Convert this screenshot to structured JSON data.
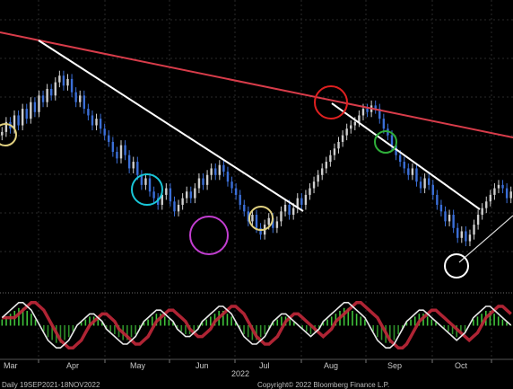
{
  "chart_data": {
    "type": "candlestick",
    "x_axis": {
      "months": [
        "Mar",
        "Apr",
        "May",
        "Jun",
        "Jul",
        "Aug",
        "Sep",
        "Oct"
      ],
      "year": "2022"
    },
    "footer": {
      "left": "Daily 19SEP2021-18NOV2022",
      "right": "Copyright© 2022 Bloomberg Finance L.P."
    },
    "grid": true,
    "background": "#000000",
    "price_panel": {
      "description_series": "daily price bars (dark blue bars = down days, white/grey bars = up days)",
      "close": [
        97,
        100,
        98,
        102,
        99,
        104,
        101,
        106,
        103,
        108,
        106,
        110,
        108,
        112,
        114,
        111,
        113,
        109,
        106,
        108,
        104,
        102,
        99,
        101,
        98,
        96,
        94,
        91,
        89,
        93,
        90,
        86,
        88,
        84,
        81,
        83,
        79,
        77,
        75,
        78,
        80,
        76,
        73,
        75,
        77,
        79,
        77,
        80,
        83,
        81,
        84,
        86,
        84,
        87,
        85,
        82,
        80,
        78,
        75,
        73,
        70,
        72,
        68,
        66,
        69,
        71,
        68,
        70,
        73,
        75,
        72,
        74,
        77,
        75,
        78,
        80,
        82,
        84,
        86,
        88,
        90,
        92,
        94,
        96,
        98,
        99,
        100,
        102,
        104,
        103,
        105,
        104,
        101,
        98,
        96,
        93,
        90,
        88,
        86,
        84,
        86,
        82,
        80,
        83,
        81,
        78,
        75,
        73,
        70,
        72,
        68,
        65,
        67,
        64,
        66,
        69,
        72,
        74,
        76,
        78,
        80,
        81,
        80,
        77,
        79
      ],
      "up_color": "#cfcfcf",
      "down_color": "#3b6fd8"
    },
    "trendlines": [
      {
        "name": "long-term-resistance",
        "color": "#d83c4a"
      },
      {
        "name": "downtrend-1",
        "color": "#ffffff"
      },
      {
        "name": "downtrend-2",
        "color": "#ffffff"
      },
      {
        "name": "uptrend-support",
        "color": "#d8d8d8"
      }
    ],
    "annotations": [
      {
        "shape": "circle",
        "color": "#e0d080"
      },
      {
        "shape": "circle",
        "color": "#19c7d8"
      },
      {
        "shape": "circle",
        "color": "#c23ed0"
      },
      {
        "shape": "circle",
        "color": "#e0d080"
      },
      {
        "shape": "circle",
        "color": "#e02020"
      },
      {
        "shape": "circle",
        "color": "#2fae3a"
      },
      {
        "shape": "circle",
        "color": "#ffffff"
      }
    ],
    "indicator_panel": {
      "histogram": [
        2,
        3,
        4,
        5,
        6,
        6,
        5,
        4,
        2,
        0,
        -2,
        -4,
        -5,
        -6,
        -6,
        -5,
        -4,
        -2,
        0,
        1,
        2,
        3,
        3,
        2,
        1,
        -1,
        -2,
        -3,
        -4,
        -5,
        -5,
        -4,
        -3,
        -1,
        1,
        2,
        3,
        4,
        4,
        3,
        2,
        1,
        -1,
        -2,
        -3,
        -3,
        -2,
        -1,
        1,
        2,
        3,
        4,
        5,
        5,
        4,
        3,
        1,
        -1,
        -3,
        -4,
        -5,
        -5,
        -4,
        -3,
        -1,
        1,
        2,
        3,
        3,
        2,
        1,
        0,
        -1,
        -2,
        -3,
        -2,
        -1,
        1,
        2,
        3,
        4,
        5,
        6,
        6,
        5,
        4,
        3,
        2,
        0,
        -2,
        -4,
        -5,
        -6,
        -6,
        -5,
        -3,
        -1,
        1,
        2,
        3,
        4,
        4,
        3,
        2,
        1,
        0,
        -1,
        -2,
        -3,
        -4,
        -3,
        -2,
        0,
        2,
        3,
        4,
        5,
        5,
        4,
        3,
        2,
        1,
        0
      ],
      "pos_color": "#3fc23a",
      "neg_color": "#2f8f2a",
      "fast_color": "#e8e8e8",
      "slow_color": "#c2283a"
    }
  }
}
